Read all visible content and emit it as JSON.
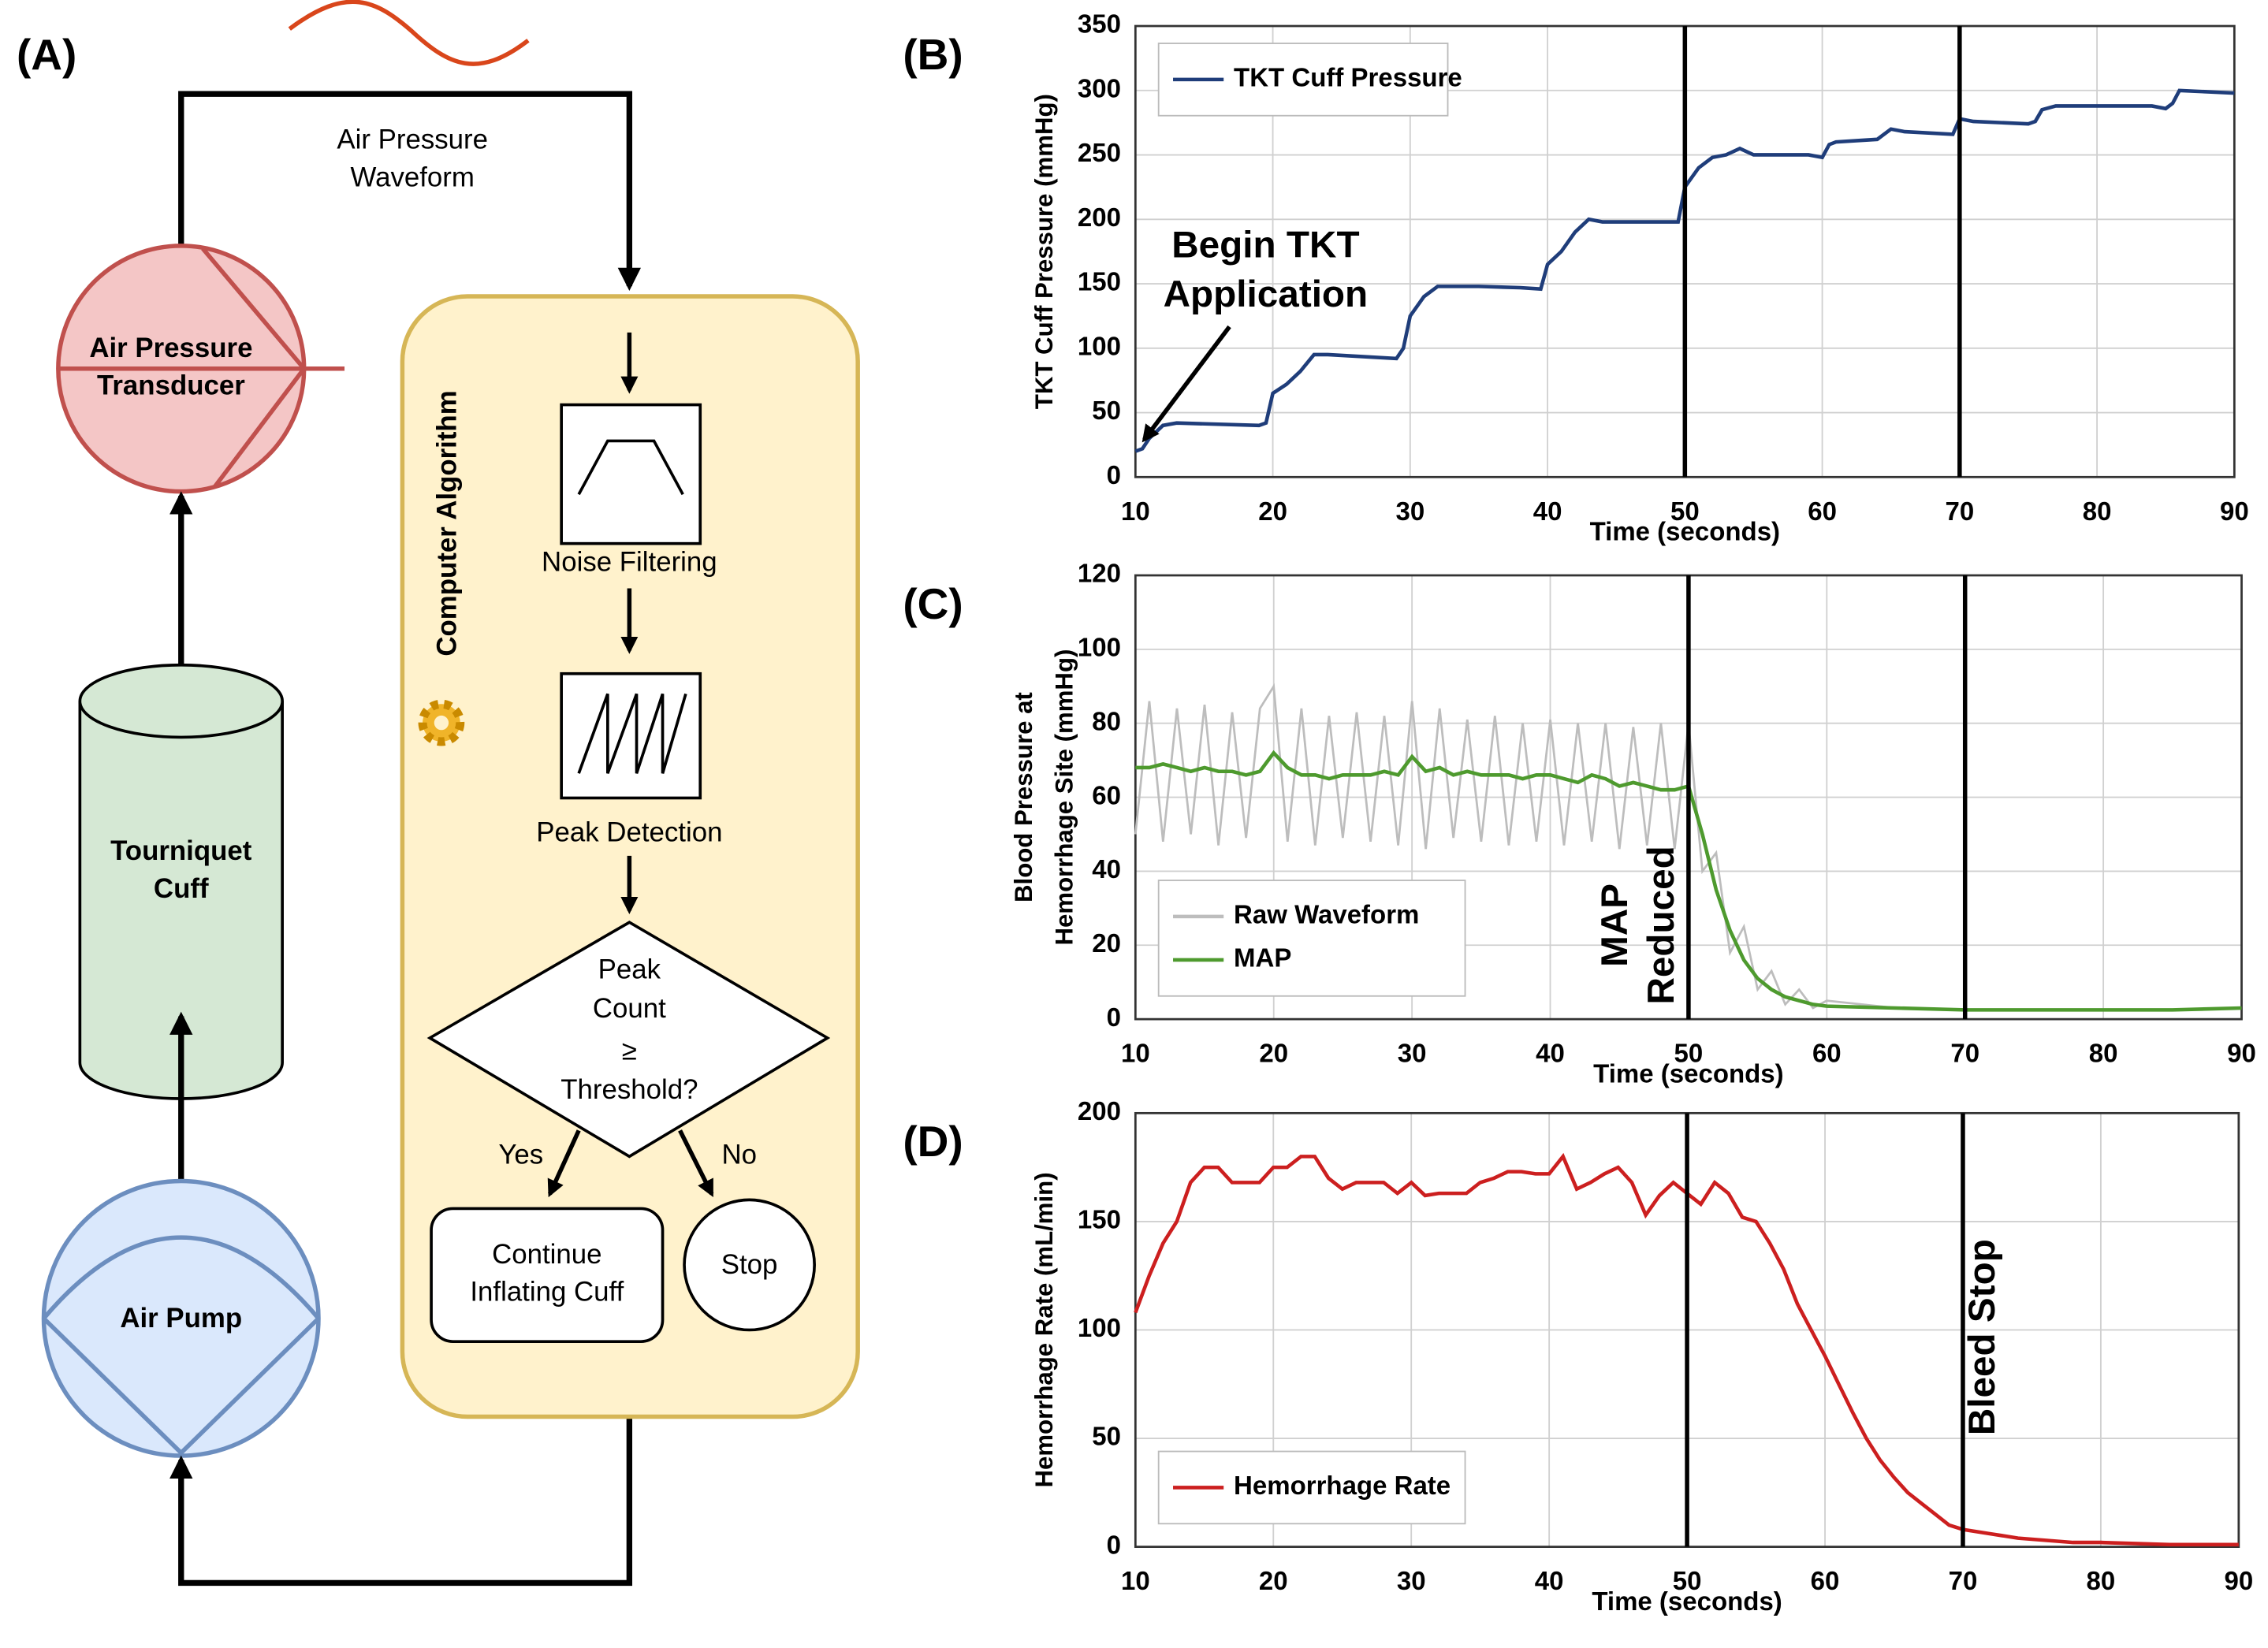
{
  "diagram": {
    "panel": "(A)",
    "waveform": [
      "Air Pressure",
      "Waveform"
    ],
    "transducer": [
      "Air Pressure",
      "Transducer"
    ],
    "cuff": [
      "Tourniquet",
      "Cuff"
    ],
    "pump": "Air Pump",
    "algorithm": "Computer Algorithm",
    "filter": "Noise Filtering",
    "peak": "Peak Detection",
    "decision": [
      "Peak",
      "Count",
      "≥",
      "Threshold?"
    ],
    "yes": "Yes",
    "no": "No",
    "continue": [
      "Continue",
      "Inflating Cuff"
    ],
    "stop": "Stop"
  },
  "chart_data": [
    {
      "type": "line",
      "panel": "(B)",
      "xlabel": "Time (seconds)",
      "ylabel": "TKT Cuff Pressure (mmHg)",
      "xlim": [
        10,
        90
      ],
      "xticks": [
        10,
        20,
        30,
        40,
        50,
        60,
        70,
        80,
        90
      ],
      "ylim": [
        0,
        350
      ],
      "yticks": [
        0,
        50,
        100,
        150,
        200,
        250,
        300,
        350
      ],
      "grid": true,
      "legend": "upper left",
      "vlines": [
        50,
        70
      ],
      "annotation": [
        "Begin TKT",
        "Application"
      ],
      "x": [
        10,
        10.5,
        11,
        12,
        13,
        19,
        19.5,
        20,
        21,
        22,
        23,
        24,
        29,
        29.5,
        30,
        31,
        32,
        35,
        38,
        39.5,
        40,
        41,
        42,
        43,
        44,
        49.5,
        50,
        51,
        52,
        53,
        54,
        55,
        59,
        60,
        60.5,
        61,
        64,
        65,
        66,
        69.5,
        70,
        71,
        75,
        75.5,
        76,
        77,
        84,
        85,
        85.5,
        86,
        90
      ],
      "series": [
        {
          "name": "TKT Cuff Pressure",
          "color": "#1f3d7a",
          "values": [
            20,
            22,
            30,
            40,
            42,
            40,
            42,
            65,
            72,
            82,
            95,
            95,
            92,
            100,
            125,
            140,
            148,
            148,
            147,
            146,
            165,
            175,
            190,
            200,
            198,
            198,
            225,
            240,
            248,
            250,
            255,
            250,
            250,
            248,
            258,
            260,
            262,
            270,
            268,
            266,
            278,
            276,
            274,
            276,
            285,
            288,
            288,
            286,
            290,
            300,
            298
          ]
        }
      ]
    },
    {
      "type": "line",
      "panel": "(C)",
      "xlabel": "Time (seconds)",
      "ylabel": [
        "Blood Pressure at",
        "Hemorrhage Site (mmHg)"
      ],
      "xlim": [
        10,
        90
      ],
      "xticks": [
        10,
        20,
        30,
        40,
        50,
        60,
        70,
        80,
        90
      ],
      "ylim": [
        0,
        120
      ],
      "yticks": [
        0,
        20,
        40,
        60,
        80,
        100,
        120
      ],
      "grid": true,
      "legend": "lower left",
      "vlines": [
        50,
        70
      ],
      "annotation": [
        "MAP",
        "Reduced"
      ],
      "x": [
        10,
        11,
        12,
        13,
        14,
        15,
        16,
        17,
        18,
        19,
        20,
        21,
        22,
        23,
        24,
        25,
        26,
        27,
        28,
        29,
        30,
        31,
        32,
        33,
        34,
        35,
        36,
        37,
        38,
        39,
        40,
        41,
        42,
        43,
        44,
        45,
        46,
        47,
        48,
        49,
        50,
        51,
        52,
        53,
        54,
        55,
        56,
        57,
        58,
        59,
        60,
        65,
        70,
        75,
        80,
        85,
        90
      ],
      "series": [
        {
          "name": "Raw Waveform",
          "color": "#bdbdbd",
          "values": [
            50,
            86,
            48,
            84,
            50,
            85,
            47,
            83,
            49,
            84,
            90,
            48,
            84,
            47,
            82,
            49,
            83,
            48,
            82,
            47,
            86,
            46,
            84,
            49,
            81,
            48,
            82,
            47,
            80,
            48,
            81,
            47,
            80,
            48,
            80,
            46,
            79,
            47,
            80,
            46,
            80,
            40,
            45,
            18,
            25,
            8,
            13,
            4,
            8,
            3,
            5,
            3,
            2.5,
            2.5,
            2.5,
            2.5,
            3
          ]
        },
        {
          "name": "MAP",
          "color": "#4e9a2e",
          "values": [
            68,
            68,
            69,
            68,
            67,
            68,
            67,
            67,
            66,
            67,
            72,
            68,
            66,
            66,
            65,
            66,
            66,
            66,
            67,
            66,
            71,
            67,
            68,
            66,
            67,
            66,
            66,
            66,
            65,
            66,
            66,
            65,
            64,
            66,
            65,
            63,
            64,
            63,
            62,
            62,
            63,
            50,
            35,
            24,
            16,
            11,
            8,
            6,
            5,
            4,
            3.5,
            3,
            2.5,
            2.5,
            2.5,
            2.5,
            3
          ]
        }
      ]
    },
    {
      "type": "line",
      "panel": "(D)",
      "xlabel": "Time (seconds)",
      "ylabel": "Hemorrhage Rate (mL/min)",
      "xlim": [
        10,
        90
      ],
      "xticks": [
        10,
        20,
        30,
        40,
        50,
        60,
        70,
        80,
        90
      ],
      "ylim": [
        0,
        200
      ],
      "yticks": [
        0,
        50,
        100,
        150,
        200
      ],
      "grid": true,
      "legend": "lower left",
      "vlines": [
        50,
        70
      ],
      "annotation": [
        "Bleed Stop"
      ],
      "x": [
        10,
        11,
        12,
        13,
        14,
        15,
        16,
        17,
        18,
        19,
        20,
        21,
        22,
        23,
        24,
        25,
        26,
        27,
        28,
        29,
        30,
        31,
        32,
        33,
        34,
        35,
        36,
        37,
        38,
        39,
        40,
        41,
        42,
        43,
        44,
        45,
        46,
        47,
        48,
        49,
        50,
        51,
        52,
        53,
        54,
        55,
        56,
        57,
        58,
        59,
        60,
        61,
        62,
        63,
        64,
        65,
        66,
        67,
        68,
        69,
        70,
        72,
        74,
        76,
        78,
        80,
        85,
        90
      ],
      "series": [
        {
          "name": "Hemorrhage Rate",
          "color": "#cc1f1f",
          "values": [
            108,
            125,
            140,
            150,
            168,
            175,
            175,
            168,
            168,
            168,
            175,
            175,
            180,
            180,
            170,
            165,
            168,
            168,
            168,
            163,
            168,
            162,
            163,
            163,
            163,
            168,
            170,
            173,
            173,
            172,
            172,
            180,
            165,
            168,
            172,
            175,
            168,
            153,
            162,
            168,
            163,
            158,
            168,
            163,
            152,
            150,
            140,
            128,
            112,
            100,
            88,
            75,
            62,
            50,
            40,
            32,
            25,
            20,
            15,
            10,
            8,
            6,
            4,
            3,
            2,
            2,
            1,
            1
          ]
        }
      ]
    }
  ]
}
